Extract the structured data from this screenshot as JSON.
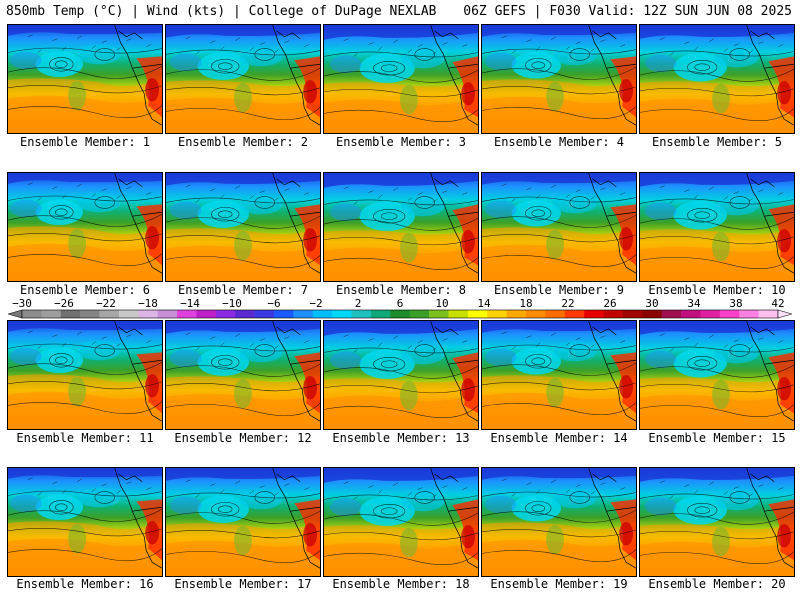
{
  "header": {
    "left": "850mb Temp (°C) | Wind (kts) | College of DuPage NEXLAB",
    "right": "06Z GEFS | F030 Valid: 12Z SUN JUN 08 2025"
  },
  "members": [
    {
      "label": "Ensemble Member: 1"
    },
    {
      "label": "Ensemble Member: 2"
    },
    {
      "label": "Ensemble Member: 3"
    },
    {
      "label": "Ensemble Member: 4"
    },
    {
      "label": "Ensemble Member: 5"
    },
    {
      "label": "Ensemble Member: 6"
    },
    {
      "label": "Ensemble Member: 7"
    },
    {
      "label": "Ensemble Member: 8"
    },
    {
      "label": "Ensemble Member: 9"
    },
    {
      "label": "Ensemble Member: 10"
    },
    {
      "label": "Ensemble Member: 11"
    },
    {
      "label": "Ensemble Member: 12"
    },
    {
      "label": "Ensemble Member: 13"
    },
    {
      "label": "Ensemble Member: 14"
    },
    {
      "label": "Ensemble Member: 15"
    },
    {
      "label": "Ensemble Member: 16"
    },
    {
      "label": "Ensemble Member: 17"
    },
    {
      "label": "Ensemble Member: 18"
    },
    {
      "label": "Ensemble Member: 19"
    },
    {
      "label": "Ensemble Member: 20"
    }
  ],
  "colorbar": {
    "labels": [
      "−30",
      "−26",
      "−22",
      "−18",
      "−14",
      "−10",
      "−6",
      "−2",
      "2",
      "6",
      "10",
      "14",
      "18",
      "22",
      "26",
      "30",
      "34",
      "38",
      "42"
    ],
    "colors": [
      "#8c8c8c",
      "#9e9e9e",
      "#707070",
      "#848484",
      "#a6a6a6",
      "#c8c8c8",
      "#dcb4e6",
      "#c78fd8",
      "#e040e0",
      "#c020c8",
      "#8a2be2",
      "#5a2ad0",
      "#3a3ae0",
      "#1a5aff",
      "#1e90ff",
      "#00bfff",
      "#00d8ff",
      "#20c0c0",
      "#10a878",
      "#1a8c2a",
      "#3ca028",
      "#7cc020",
      "#c8e000",
      "#ffff00",
      "#ffd200",
      "#ffa800",
      "#ff8c00",
      "#ff6e00",
      "#ff3a00",
      "#e80000",
      "#c00000",
      "#a00000",
      "#8b0000",
      "#a01050",
      "#c01080",
      "#e020a0",
      "#ff40c8",
      "#ff80e0",
      "#ffc0f0"
    ]
  }
}
